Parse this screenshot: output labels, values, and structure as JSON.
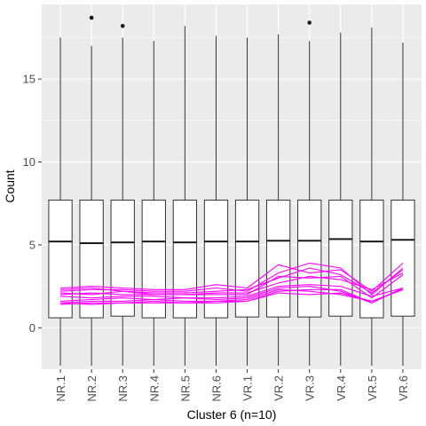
{
  "chart_data": {
    "type": "box",
    "xlabel": "Cluster 6 (n=10)",
    "ylabel": "Count",
    "ylim": [
      -2.5,
      19.5
    ],
    "yticks": [
      0,
      5,
      10,
      15
    ],
    "grid": true,
    "categories": [
      "NR.1",
      "NR.2",
      "NR.3",
      "NR.4",
      "NR.5",
      "NR.6",
      "VR.1",
      "VR.2",
      "VR.3",
      "VR.4",
      "VR.5",
      "VR.6"
    ],
    "boxes": [
      {
        "min": -2.3,
        "q1": 0.6,
        "median": 5.2,
        "q3": 7.7,
        "max": 17.5,
        "outliers": []
      },
      {
        "min": -2.3,
        "q1": 0.6,
        "median": 5.1,
        "q3": 7.7,
        "max": 17.0,
        "outliers": [
          18.7
        ]
      },
      {
        "min": -2.3,
        "q1": 0.7,
        "median": 5.15,
        "q3": 7.7,
        "max": 17.5,
        "outliers": [
          18.2
        ]
      },
      {
        "min": -2.3,
        "q1": 0.6,
        "median": 5.2,
        "q3": 7.7,
        "max": 17.3,
        "outliers": []
      },
      {
        "min": -2.3,
        "q1": 0.6,
        "median": 5.15,
        "q3": 7.7,
        "max": 18.2,
        "outliers": []
      },
      {
        "min": -2.3,
        "q1": 0.6,
        "median": 5.2,
        "q3": 7.7,
        "max": 17.6,
        "outliers": []
      },
      {
        "min": -2.3,
        "q1": 0.65,
        "median": 5.2,
        "q3": 7.7,
        "max": 17.5,
        "outliers": []
      },
      {
        "min": -2.3,
        "q1": 0.65,
        "median": 5.25,
        "q3": 7.7,
        "max": 17.7,
        "outliers": []
      },
      {
        "min": -2.3,
        "q1": 0.65,
        "median": 5.25,
        "q3": 7.7,
        "max": 17.3,
        "outliers": [
          18.4
        ]
      },
      {
        "min": -2.3,
        "q1": 0.7,
        "median": 5.35,
        "q3": 7.7,
        "max": 17.8,
        "outliers": []
      },
      {
        "min": -2.3,
        "q1": 0.6,
        "median": 5.2,
        "q3": 7.7,
        "max": 18.1,
        "outliers": []
      },
      {
        "min": -2.3,
        "q1": 0.7,
        "median": 5.3,
        "q3": 7.7,
        "max": 17.2,
        "outliers": []
      }
    ],
    "line_color": "#ff00ff",
    "series": [
      {
        "values": [
          2.4,
          2.5,
          2.4,
          2.3,
          2.3,
          2.6,
          2.4,
          3.8,
          3.3,
          3.5,
          2.2,
          3.9
        ]
      },
      {
        "values": [
          2.2,
          2.3,
          2.3,
          2.2,
          2.2,
          2.4,
          2.2,
          3.3,
          3.9,
          3.6,
          2.0,
          3.6
        ]
      },
      {
        "values": [
          2.3,
          2.4,
          2.2,
          2.1,
          2.1,
          2.2,
          2.3,
          3.0,
          3.6,
          3.2,
          2.1,
          3.5
        ]
      },
      {
        "values": [
          2.1,
          2.0,
          2.2,
          2.0,
          2.0,
          2.1,
          2.1,
          2.7,
          3.1,
          2.9,
          2.3,
          3.3
        ]
      },
      {
        "values": [
          2.0,
          2.1,
          2.0,
          2.0,
          2.0,
          2.0,
          2.0,
          3.1,
          3.0,
          3.1,
          1.8,
          3.2
        ]
      },
      {
        "values": [
          1.9,
          1.8,
          1.9,
          1.9,
          1.8,
          1.8,
          1.9,
          2.5,
          2.6,
          2.5,
          1.9,
          2.4
        ]
      },
      {
        "values": [
          1.6,
          1.7,
          1.8,
          1.7,
          1.8,
          1.7,
          1.8,
          2.4,
          2.5,
          2.2,
          1.5,
          2.4
        ]
      },
      {
        "values": [
          1.5,
          1.6,
          1.6,
          1.7,
          1.6,
          1.6,
          1.7,
          2.3,
          2.2,
          2.0,
          1.6,
          2.3
        ]
      },
      {
        "values": [
          1.4,
          1.5,
          1.5,
          1.5,
          1.5,
          1.6,
          1.6,
          2.2,
          2.3,
          2.3,
          1.5,
          2.4
        ]
      },
      {
        "values": [
          1.5,
          1.4,
          1.5,
          1.6,
          1.5,
          1.5,
          1.6,
          2.1,
          2.0,
          2.1,
          1.6,
          2.3
        ]
      }
    ]
  }
}
